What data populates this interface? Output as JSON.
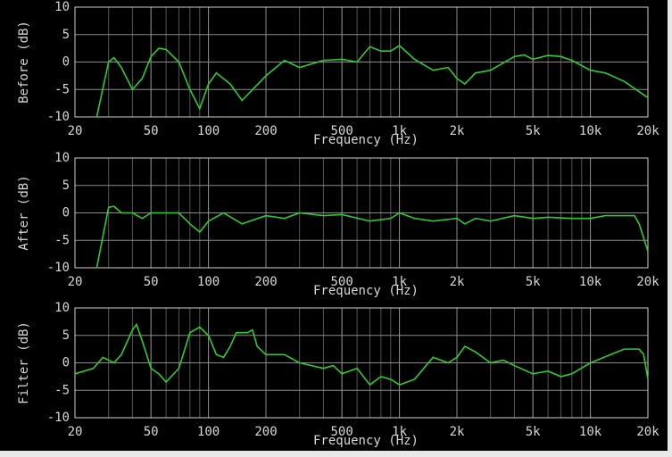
{
  "chart_data": [
    {
      "type": "line",
      "ylabel": "Before (dB)",
      "xlabel": "Frequency (Hz)",
      "log_x": true,
      "grid": true,
      "xlim": [
        20,
        20000
      ],
      "ylim": [
        -10,
        10
      ],
      "xticks": [
        20,
        50,
        100,
        200,
        500,
        {
          "value": 1000,
          "label": "1k"
        },
        {
          "value": 2000,
          "label": "2k"
        },
        {
          "value": 5000,
          "label": "5k"
        },
        {
          "value": 10000,
          "label": "10k"
        },
        {
          "value": 20000,
          "label": "20k"
        }
      ],
      "yticks": [
        -10,
        -5,
        0,
        5,
        10
      ],
      "series": [
        {
          "color": "#2ecc2e",
          "x": [
            26,
            30,
            32,
            35,
            40,
            45,
            50,
            55,
            60,
            70,
            80,
            90,
            100,
            110,
            130,
            150,
            200,
            250,
            300,
            400,
            500,
            600,
            700,
            800,
            900,
            1000,
            1200,
            1500,
            1800,
            2000,
            2200,
            2500,
            3000,
            4000,
            4500,
            5000,
            6000,
            7000,
            8000,
            10000,
            12000,
            15000,
            20000
          ],
          "values": [
            -10,
            0,
            0.8,
            -1,
            -5,
            -3,
            1,
            2.5,
            2.3,
            0,
            -5,
            -8.5,
            -4,
            -2,
            -4,
            -7,
            -2.5,
            0.3,
            -1,
            0.3,
            0.5,
            0,
            2.8,
            2,
            2,
            3,
            0.5,
            -1.5,
            -1,
            -3,
            -4,
            -2,
            -1.5,
            1,
            1.3,
            0.5,
            1.2,
            1,
            0.3,
            -1.5,
            -2,
            -3.5,
            -6.5
          ]
        }
      ]
    },
    {
      "type": "line",
      "ylabel": "After (dB)",
      "xlabel": "Frequency (Hz)",
      "log_x": true,
      "grid": true,
      "xlim": [
        20,
        20000
      ],
      "ylim": [
        -10,
        10
      ],
      "xticks": [
        20,
        50,
        100,
        200,
        500,
        {
          "value": 1000,
          "label": "1k"
        },
        {
          "value": 2000,
          "label": "2k"
        },
        {
          "value": 5000,
          "label": "5k"
        },
        {
          "value": 10000,
          "label": "10k"
        },
        {
          "value": 20000,
          "label": "20k"
        }
      ],
      "yticks": [
        -10,
        -5,
        0,
        5,
        10
      ],
      "series": [
        {
          "color": "#2ecc2e",
          "x": [
            26,
            30,
            32,
            35,
            40,
            45,
            50,
            60,
            70,
            80,
            90,
            100,
            120,
            150,
            200,
            250,
            300,
            400,
            500,
            700,
            900,
            1000,
            1200,
            1500,
            2000,
            2200,
            2500,
            3000,
            4000,
            5000,
            6000,
            8000,
            10000,
            12000,
            17000,
            18000,
            20000
          ],
          "values": [
            -10,
            1,
            1.2,
            0,
            0,
            -1,
            0,
            0,
            0,
            -2,
            -3.5,
            -1.5,
            0,
            -2,
            -0.5,
            -1,
            0,
            -0.5,
            -0.3,
            -1.5,
            -1,
            0,
            -1,
            -1.5,
            -1,
            -2,
            -1,
            -1.5,
            -0.5,
            -1,
            -0.8,
            -1,
            -1,
            -0.5,
            -0.5,
            -2,
            -7
          ]
        }
      ]
    },
    {
      "type": "line",
      "ylabel": "Filter (dB)",
      "xlabel": "Frequency (Hz)",
      "log_x": true,
      "grid": true,
      "xlim": [
        20,
        20000
      ],
      "ylim": [
        -10,
        10
      ],
      "xticks": [
        20,
        50,
        100,
        200,
        500,
        {
          "value": 1000,
          "label": "1k"
        },
        {
          "value": 2000,
          "label": "2k"
        },
        {
          "value": 5000,
          "label": "5k"
        },
        {
          "value": 10000,
          "label": "10k"
        },
        {
          "value": 20000,
          "label": "20k"
        }
      ],
      "yticks": [
        -10,
        -5,
        0,
        5,
        10
      ],
      "series": [
        {
          "color": "#2ecc2e",
          "x": [
            20,
            25,
            28,
            32,
            35,
            40,
            42,
            45,
            50,
            55,
            60,
            70,
            80,
            90,
            100,
            110,
            120,
            130,
            140,
            160,
            170,
            180,
            200,
            250,
            300,
            400,
            450,
            500,
            600,
            700,
            800,
            900,
            1000,
            1200,
            1500,
            1800,
            2000,
            2200,
            2500,
            3000,
            3500,
            4000,
            5000,
            6000,
            7000,
            8000,
            10000,
            15000,
            18000,
            19000,
            20000
          ],
          "values": [
            -2,
            -1,
            1,
            0,
            1.5,
            6,
            7,
            4,
            -1,
            -2,
            -3.5,
            -1,
            5.5,
            6.5,
            5,
            1.5,
            1,
            3,
            5.5,
            5.5,
            6,
            3,
            1.5,
            1.5,
            0,
            -1,
            -0.5,
            -2,
            -1,
            -4,
            -2.5,
            -3,
            -4,
            -3,
            1,
            0,
            1,
            3,
            2,
            0,
            0.5,
            -0.5,
            -2,
            -1.5,
            -2.5,
            -2,
            0,
            2.5,
            2.5,
            1.5,
            -3
          ]
        }
      ]
    }
  ]
}
